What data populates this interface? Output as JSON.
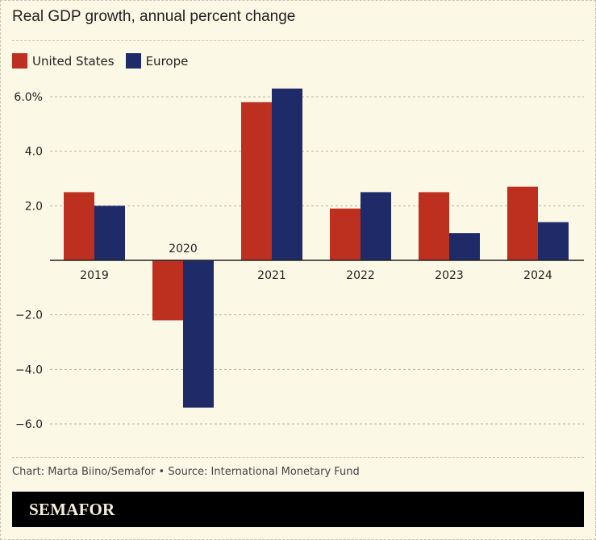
{
  "header": {
    "title": "Real GDP growth, annual percent change"
  },
  "legend": [
    {
      "label": "United States",
      "color": "#bd3020"
    },
    {
      "label": "Europe",
      "color": "#1f2a68"
    }
  ],
  "chart_data": {
    "type": "bar",
    "title": "Real GDP growth, annual percent change",
    "xlabel": "",
    "ylabel": "",
    "categories": [
      "2019",
      "2020",
      "2021",
      "2022",
      "2023",
      "2024"
    ],
    "series": [
      {
        "name": "United States",
        "color": "#bd3020",
        "values": [
          2.5,
          -2.2,
          5.8,
          1.9,
          2.5,
          2.7
        ]
      },
      {
        "name": "Europe",
        "color": "#1f2a68",
        "values": [
          2.0,
          -5.4,
          6.3,
          2.5,
          1.0,
          1.4
        ]
      }
    ],
    "ylim": [
      -6.0,
      6.0
    ],
    "yticks": [
      6.0,
      4.0,
      2.0,
      0,
      -2.0,
      -4.0,
      -6.0
    ],
    "ytick_labels": [
      "6.0%",
      "4.0",
      "2.0",
      "",
      "−2.0",
      "−4.0",
      "−6.0"
    ],
    "grid": true,
    "legend_position": "top-left"
  },
  "footer": {
    "credit": "Chart: Marta Biino/Semafor • Source: International Monetary Fund",
    "brand": "SEMAFOR"
  }
}
